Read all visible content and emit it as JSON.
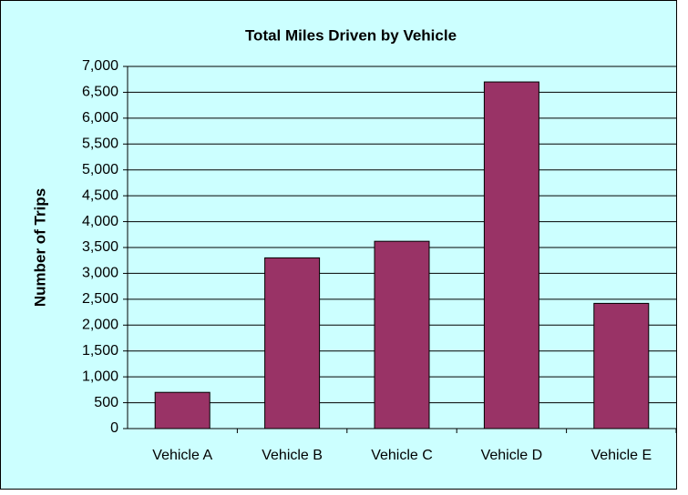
{
  "chart_data": {
    "type": "bar",
    "title": "Total Miles Driven by Vehicle",
    "y_label": "Number of Trips",
    "categories": [
      "Vehicle A",
      "Vehicle B",
      "Vehicle C",
      "Vehicle D",
      "Vehicle E"
    ],
    "values": [
      700,
      3300,
      3620,
      6700,
      2420
    ],
    "color": "#993366",
    "ylim": [
      0,
      7000
    ],
    "yticks": [
      0,
      500,
      {
        "value": 1000,
        "label": "1,000"
      },
      {
        "value": 1500,
        "label": "1,500"
      },
      {
        "value": 2000,
        "label": "2,000"
      },
      {
        "value": 2500,
        "label": "2,500"
      },
      {
        "value": 3000,
        "label": "3,000"
      },
      {
        "value": 3500,
        "label": "3,500"
      },
      {
        "value": 4000,
        "label": "4,000"
      },
      {
        "value": 4500,
        "label": "4,500"
      },
      {
        "value": 5000,
        "label": "5,000"
      },
      {
        "value": 5500,
        "label": "5,500"
      },
      {
        "value": 6000,
        "label": "6,000"
      },
      {
        "value": 6500,
        "label": "6,500"
      },
      {
        "value": 7000,
        "label": "7,000"
      }
    ],
    "grid": true
  }
}
